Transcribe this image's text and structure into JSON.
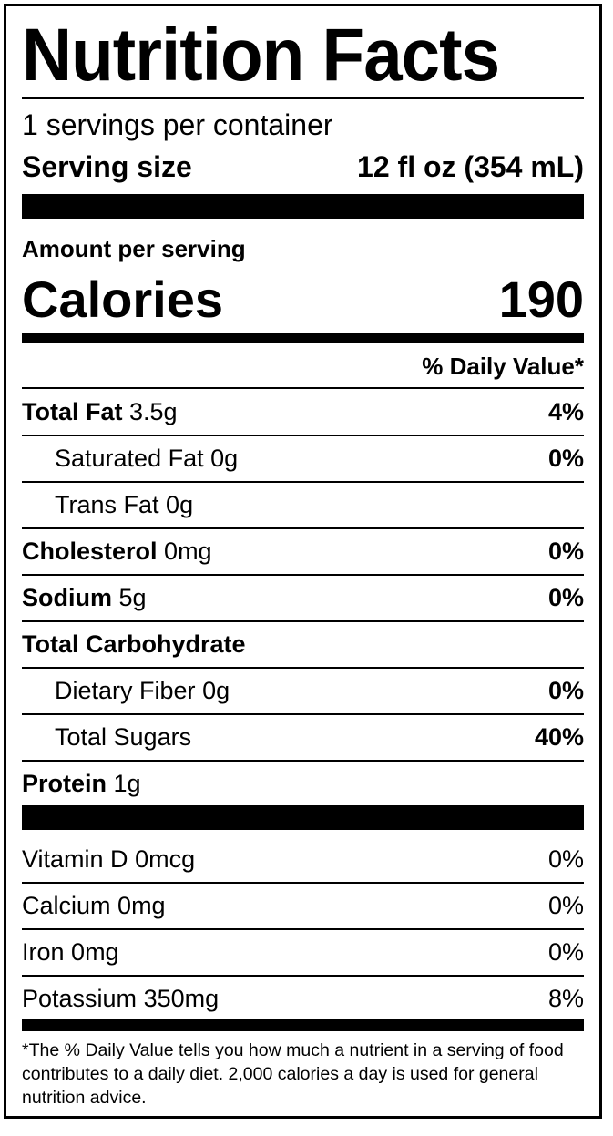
{
  "title": "Nutrition Facts",
  "servings_per_container": "1 servings per container",
  "serving_size": {
    "label": "Serving size",
    "value": "12 fl oz (354 mL)"
  },
  "amount_per_serving": "Amount per serving",
  "calories": {
    "label": "Calories",
    "value": "190"
  },
  "daily_value_header": "% Daily Value*",
  "nutrients": [
    {
      "name": "Total Fat",
      "amount": "3.5g",
      "dv": "4%"
    },
    {
      "name": "Saturated Fat",
      "amount": "0g",
      "dv": "0%"
    },
    {
      "name": "Trans Fat",
      "amount": "0g",
      "dv": ""
    },
    {
      "name": "Cholesterol",
      "amount": "0mg",
      "dv": "0%"
    },
    {
      "name": "Sodium",
      "amount": "5g",
      "dv": "0%"
    },
    {
      "name": "Total Carbohydrate",
      "amount": "",
      "dv": ""
    },
    {
      "name": "Dietary Fiber",
      "amount": "0g",
      "dv": "0%"
    },
    {
      "name": "Total Sugars",
      "amount": "",
      "dv": "40%"
    },
    {
      "name": "Protein",
      "amount": "1g",
      "dv": ""
    }
  ],
  "vitamins": [
    {
      "name": "Vitamin D",
      "amount": "0mcg",
      "dv": "0%"
    },
    {
      "name": "Calcium",
      "amount": "0mg",
      "dv": "0%"
    },
    {
      "name": "Iron",
      "amount": "0mg",
      "dv": "0%"
    },
    {
      "name": "Potassium",
      "amount": "350mg",
      "dv": "8%"
    }
  ],
  "footnote": "*The % Daily Value tells you how much a nutrient in a serving of food contributes to a daily diet. 2,000 calories a day is used for general nutrition advice."
}
